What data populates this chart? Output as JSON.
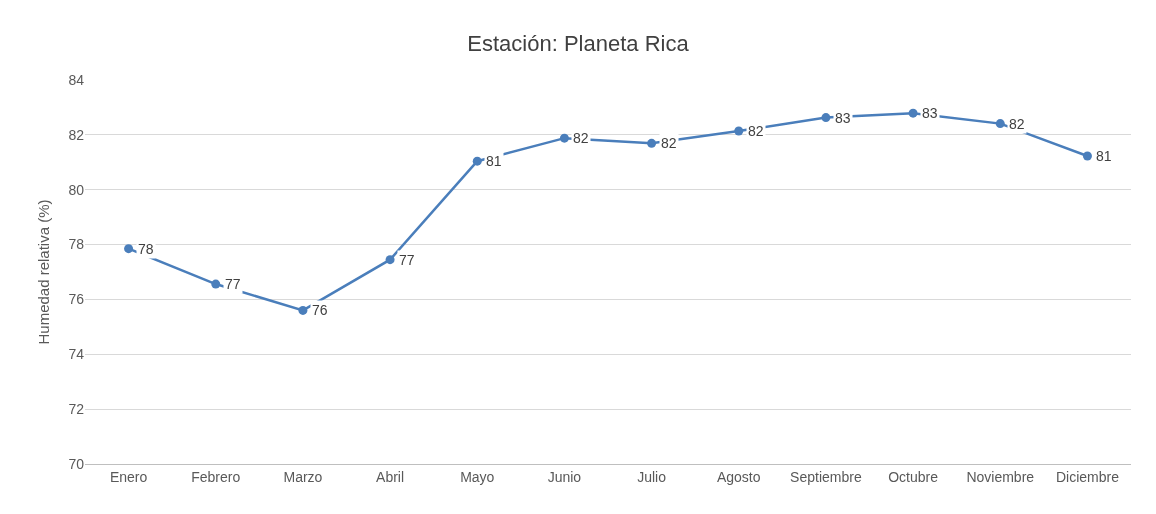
{
  "chart_data": {
    "type": "line",
    "title": "Estación: Planeta Rica",
    "ylabel": "Humedad relativa (%)",
    "categories": [
      "Enero",
      "Febrero",
      "Marzo",
      "Abril",
      "Mayo",
      "Junio",
      "Julio",
      "Agosto",
      "Septiembre",
      "Octubre",
      "Noviembre",
      "Diciembre"
    ],
    "series": [
      {
        "color": "#4a7ebb",
        "values": [
          77.85,
          76.56,
          75.6,
          77.45,
          81.04,
          81.88,
          81.69,
          82.14,
          82.63,
          82.79,
          82.41,
          81.23
        ],
        "value_labels": [
          "78",
          "77",
          "76",
          "77",
          "81",
          "82",
          "82",
          "82",
          "83",
          "83",
          "82",
          "81"
        ]
      }
    ],
    "ylim": [
      70,
      84
    ],
    "yticks": [
      70,
      72,
      74,
      76,
      78,
      80,
      82,
      84
    ],
    "grid": "y",
    "marker": "circle",
    "line_style": "solid"
  }
}
